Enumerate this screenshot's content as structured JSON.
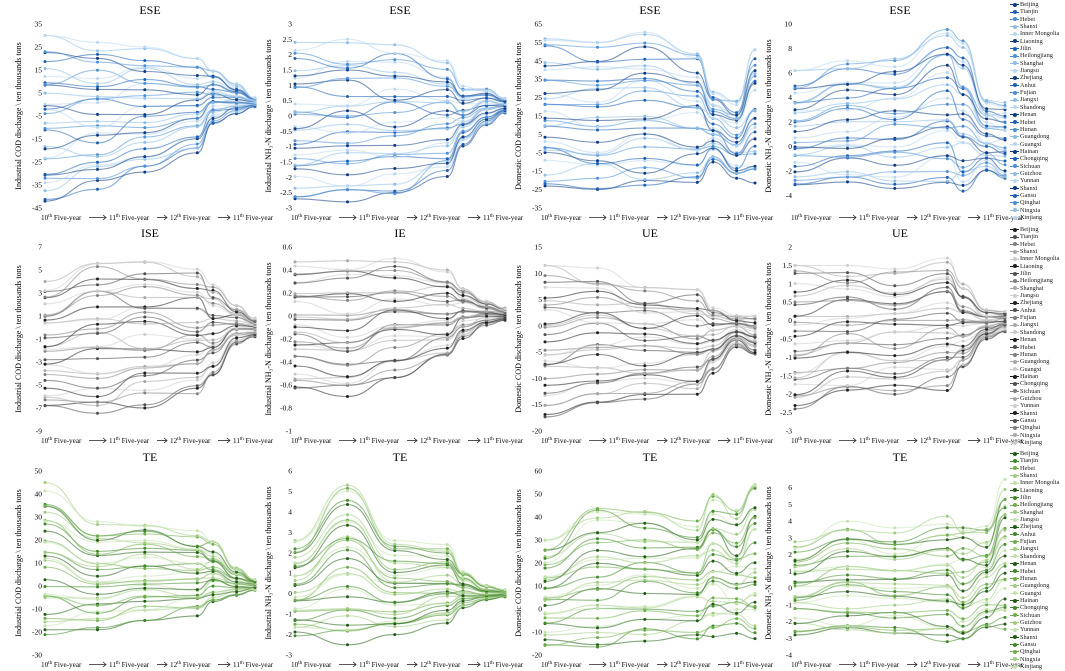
{
  "provinces": [
    "Beijing",
    "Tianjin",
    "Hebei",
    "Shanxi",
    "Inner Mongolia",
    "Liaoning",
    "Jilin",
    "Heilongjiang",
    "Shanghai",
    "Jiangsu",
    "Zhejiang",
    "Anhui",
    "Fujian",
    "Jiangxi",
    "Shandong",
    "Henan",
    "Hubei",
    "Hunan",
    "Guangdong",
    "Guangxi",
    "Hainan",
    "Chongqing",
    "Sichuan",
    "Guizhou",
    "Yunnan",
    "Shanxi",
    "Gansu",
    "Qinghai",
    "Ningxia",
    "Xinjiang"
  ],
  "x_categories": [
    "10th Five-year",
    "11th Five-year",
    "12th Five-year",
    "11th Five-year"
  ],
  "row_palettes": {
    "blue": [
      "#0b3a82",
      "#1a5fb4",
      "#4a8fd6",
      "#8dbde6",
      "#b9d7f0"
    ],
    "gray": [
      "#1e1e1e",
      "#4f4f4f",
      "#808080",
      "#a8a8a8",
      "#cccccc"
    ],
    "green": [
      "#1f5c12",
      "#3f8a28",
      "#6fae4c",
      "#9fcc80",
      "#c4e2ae"
    ]
  },
  "chart_data": [
    {
      "type": "line",
      "row": 0,
      "title": "ESE",
      "ylabel": "Industrial COD discharge \\ ten thousands tons",
      "ylim": [
        -45,
        35
      ],
      "yticks": [
        35,
        25,
        15,
        5,
        -5,
        -15,
        -25,
        -35,
        -45
      ],
      "envelope": [
        [
          -42,
          30
        ],
        [
          -37,
          27
        ],
        [
          -30,
          25
        ],
        [
          -21,
          20
        ],
        [
          -9,
          15
        ],
        [
          -4,
          9
        ],
        [
          -1,
          3
        ]
      ],
      "palette": "blue"
    },
    {
      "type": "line",
      "row": 0,
      "title": "ESE",
      "ylabel": "Industrial NH₃-N discharge \\ ten thousands tons",
      "ylim": [
        -3,
        3
      ],
      "yticks": [
        3,
        2.5,
        2,
        1.5,
        1,
        0.5,
        0,
        -0.5,
        -1,
        -1.5,
        -2,
        -2.5,
        -3
      ],
      "envelope": [
        [
          -2.7,
          2.4
        ],
        [
          -2.8,
          2.5
        ],
        [
          -2.7,
          2.4
        ],
        [
          -2.0,
          1.8
        ],
        [
          -1.0,
          1.0
        ],
        [
          -0.3,
          0.9
        ],
        [
          0.1,
          0.6
        ]
      ],
      "palette": "blue"
    },
    {
      "type": "line",
      "row": 0,
      "title": "ESE",
      "ylabel": "Domestic COD discharge \\ ten thousands tons",
      "ylim": [
        -35,
        65
      ],
      "yticks": [
        65,
        55,
        45,
        35,
        25,
        15,
        5,
        -5,
        -15,
        -25,
        -35
      ],
      "envelope": [
        [
          -23,
          57
        ],
        [
          -25,
          55
        ],
        [
          -26,
          61
        ],
        [
          -23,
          52
        ],
        [
          -10,
          28
        ],
        [
          -20,
          24
        ],
        [
          -22,
          51
        ]
      ],
      "palette": "blue"
    },
    {
      "type": "line",
      "row": 0,
      "title": "ESE",
      "ylabel": "Domestic NH₃-N discharge \\ ten thousands tons",
      "ylim": [
        -5,
        10
      ],
      "yticks": [
        10,
        8,
        6,
        4,
        2,
        0,
        -2,
        -4
      ],
      "envelope": [
        [
          -3.2,
          6.2
        ],
        [
          -3.3,
          7.3
        ],
        [
          -3.4,
          7.4
        ],
        [
          -3.5,
          10
        ],
        [
          -4.2,
          8.8
        ],
        [
          -2.2,
          3.8
        ],
        [
          -2.8,
          3.6
        ]
      ],
      "palette": "blue"
    },
    {
      "type": "line",
      "row": 1,
      "title": "ISE",
      "ylabel": "Industrial COD discharge \\ ten thousands tons",
      "ylim": [
        -9,
        7
      ],
      "yticks": [
        7,
        5,
        3,
        1,
        -1,
        -3,
        -5,
        -7,
        -9
      ],
      "envelope": [
        [
          -7,
          4
        ],
        [
          -7.6,
          6.3
        ],
        [
          -7,
          6
        ],
        [
          -6,
          5.5
        ],
        [
          -4.5,
          4
        ],
        [
          -1.5,
          2
        ],
        [
          -0.8,
          0.8
        ]
      ],
      "palette": "gray"
    },
    {
      "type": "line",
      "row": 1,
      "title": "IE",
      "ylabel": "Industrial NH₃-N discharge \\ ten thousands tons",
      "ylim": [
        -1,
        0.6
      ],
      "yticks": [
        0.6,
        0.4,
        0.2,
        0,
        -0.2,
        -0.4,
        -0.6,
        -0.8,
        -1.0
      ],
      "envelope": [
        [
          -0.65,
          0.47
        ],
        [
          -0.7,
          0.5
        ],
        [
          -0.55,
          0.5
        ],
        [
          -0.4,
          0.4
        ],
        [
          -0.2,
          0.25
        ],
        [
          -0.08,
          0.13
        ],
        [
          -0.04,
          0.07
        ]
      ],
      "palette": "gray"
    },
    {
      "type": "line",
      "row": 1,
      "title": "UE",
      "ylabel": "Domestic COD discharge \\ ten thousands tons",
      "ylim": [
        -20,
        15
      ],
      "yticks": [
        15,
        10,
        5,
        0,
        -5,
        -10,
        -15,
        -20
      ],
      "envelope": [
        [
          -18,
          11.5
        ],
        [
          -15,
          11
        ],
        [
          -14,
          8
        ],
        [
          -13,
          7
        ],
        [
          -9,
          4
        ],
        [
          -4,
          2
        ],
        [
          -6,
          2
        ]
      ],
      "palette": "gray"
    },
    {
      "type": "line",
      "row": 1,
      "title": "UE",
      "ylabel": "Domestic NH₃-N discharge \\ ten thousands tons",
      "ylim": [
        -3,
        2
      ],
      "yticks": [
        2,
        1.5,
        1,
        0.5,
        0,
        -0.5,
        -1,
        -1.5,
        -2,
        -2.5,
        -3
      ],
      "envelope": [
        [
          -2.5,
          1.5
        ],
        [
          -2.1,
          1.5
        ],
        [
          -2.0,
          1.4
        ],
        [
          -1.9,
          1.7
        ],
        [
          -1.4,
          1.0
        ],
        [
          -0.5,
          0.3
        ],
        [
          -0.3,
          0.25
        ]
      ],
      "palette": "gray"
    },
    {
      "type": "line",
      "row": 2,
      "title": "TE",
      "ylabel": "Industrial COD discharge \\ ten thousands tons",
      "ylim": [
        -30,
        50
      ],
      "yticks": [
        50,
        40,
        30,
        20,
        10,
        0,
        -10,
        -20,
        -30
      ],
      "envelope": [
        [
          -23,
          45
        ],
        [
          -19,
          29
        ],
        [
          -15,
          28
        ],
        [
          -13,
          24
        ],
        [
          -8,
          21
        ],
        [
          -4,
          8
        ],
        [
          -2,
          3
        ]
      ],
      "palette": "green"
    },
    {
      "type": "line",
      "row": 2,
      "title": "TE",
      "ylabel": "Industrial NH₃-N discharge \\ ten thousands tons",
      "ylim": [
        -3,
        6
      ],
      "yticks": [
        6,
        5,
        4,
        3,
        2,
        1,
        0,
        -1,
        -2,
        -3
      ],
      "envelope": [
        [
          -2.2,
          2.6
        ],
        [
          -2.5,
          5.4
        ],
        [
          -2.0,
          2.6
        ],
        [
          -1.5,
          2.4
        ],
        [
          -0.7,
          1.2
        ],
        [
          -0.3,
          0.4
        ],
        [
          -0.15,
          0.2
        ]
      ],
      "palette": "green"
    },
    {
      "type": "line",
      "row": 2,
      "title": "TE",
      "ylabel": "Domestic COD discharge \\ ten thousands tons",
      "ylim": [
        -20,
        60
      ],
      "yticks": [
        60,
        50,
        40,
        30,
        20,
        10,
        0,
        -10,
        -20
      ],
      "envelope": [
        [
          -17,
          30
        ],
        [
          -18,
          47
        ],
        [
          -15,
          45
        ],
        [
          -13,
          40
        ],
        [
          -12,
          52
        ],
        [
          -12,
          45
        ],
        [
          -14,
          58
        ]
      ],
      "palette": "green"
    },
    {
      "type": "line",
      "row": 2,
      "title": "TE",
      "ylabel": "Domestic NH₃-N discharge \\ ten thousands tons",
      "ylim": [
        -4,
        7
      ],
      "yticks": [
        6,
        5,
        4,
        3,
        2,
        1,
        0,
        -1,
        -2,
        -3,
        -4
      ],
      "envelope": [
        [
          -2.8,
          2.8
        ],
        [
          -2.9,
          4.0
        ],
        [
          -3.0,
          3.6
        ],
        [
          -3.2,
          4.3
        ],
        [
          -3.6,
          4.0
        ],
        [
          -2.6,
          3.8
        ],
        [
          -2.8,
          6.5
        ]
      ],
      "palette": "green"
    }
  ]
}
